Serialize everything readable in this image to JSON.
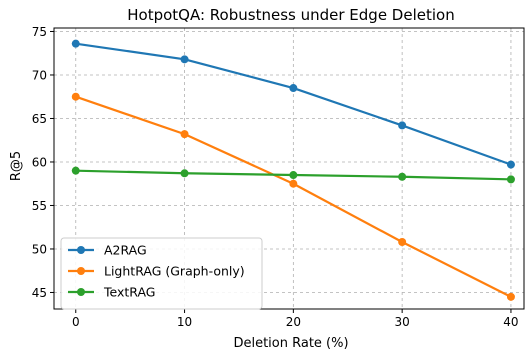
{
  "chart_data": {
    "type": "line",
    "title": "HotpotQA: Robustness under Edge Deletion",
    "xlabel": "Deletion Rate (%)",
    "ylabel": "R@5",
    "x": [
      0,
      10,
      20,
      30,
      40
    ],
    "xticks": [
      0,
      10,
      20,
      30,
      40
    ],
    "yticks": [
      45,
      50,
      55,
      60,
      65,
      70,
      75
    ],
    "xlim": [
      -2,
      41.2
    ],
    "ylim": [
      43.1,
      75.4
    ],
    "grid": true,
    "legend_position": "lower-left",
    "series": [
      {
        "name": "A2RAG",
        "color": "#1f77b4",
        "marker": "circle",
        "values": [
          73.6,
          71.8,
          68.5,
          64.2,
          59.7
        ]
      },
      {
        "name": "LightRAG (Graph-only)",
        "color": "#ff7f0e",
        "marker": "circle",
        "values": [
          67.5,
          63.2,
          57.5,
          50.8,
          44.5
        ]
      },
      {
        "name": "TextRAG",
        "color": "#2ca02c",
        "marker": "circle",
        "values": [
          59.0,
          58.7,
          58.5,
          58.3,
          58.0
        ]
      }
    ]
  }
}
